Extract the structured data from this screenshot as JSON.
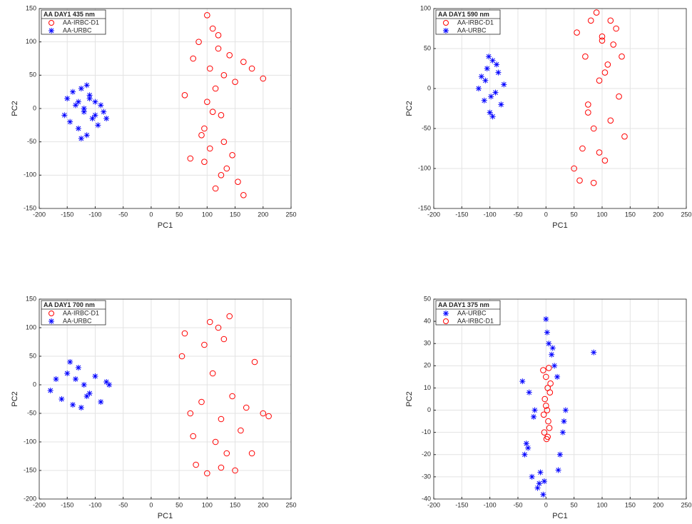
{
  "chart_data": [
    {
      "type": "scatter",
      "legend_title": "AA DAY1 435 nm",
      "xlabel": "PC1",
      "ylabel": "PC2",
      "xlim": [
        -200,
        250
      ],
      "ylim": [
        -150,
        150
      ],
      "xticks": [
        -200,
        -150,
        -100,
        -50,
        0,
        50,
        100,
        150,
        200,
        250
      ],
      "yticks": [
        -150,
        -100,
        -50,
        0,
        50,
        100,
        150
      ],
      "grid": true,
      "legend": "upper left",
      "series": [
        {
          "name": "AA-IRBC-D1",
          "color": "#ff0000",
          "marker": "o",
          "x": [
            60,
            75,
            85,
            95,
            100,
            105,
            110,
            115,
            120,
            125,
            130,
            140,
            150,
            165,
            180,
            200,
            95,
            105,
            115,
            125,
            135,
            145,
            155,
            165,
            70,
            90,
            110,
            130,
            100,
            120
          ],
          "values": [
            20,
            75,
            100,
            -30,
            140,
            60,
            120,
            30,
            90,
            -10,
            50,
            80,
            40,
            70,
            60,
            45,
            -80,
            -60,
            -120,
            -100,
            -90,
            -70,
            -110,
            -130,
            -75,
            -40,
            -5,
            -50,
            10,
            110
          ]
        },
        {
          "name": "AA-URBC",
          "color": "#0000ff",
          "marker": "*",
          "x": [
            -155,
            -150,
            -145,
            -140,
            -135,
            -130,
            -125,
            -120,
            -115,
            -110,
            -105,
            -100,
            -95,
            -90,
            -85,
            -80,
            -130,
            -120,
            -110,
            -100,
            -125,
            -115
          ],
          "values": [
            -10,
            15,
            -20,
            25,
            5,
            -30,
            30,
            0,
            -40,
            20,
            -15,
            10,
            -25,
            5,
            -5,
            -15,
            10,
            -5,
            15,
            -10,
            -45,
            35
          ]
        }
      ]
    },
    {
      "type": "scatter",
      "legend_title": "AA DAY1 590 nm",
      "xlabel": "PC1",
      "ylabel": "PC2",
      "xlim": [
        -200,
        250
      ],
      "ylim": [
        -150,
        100
      ],
      "xticks": [
        -200,
        -150,
        -100,
        -50,
        0,
        50,
        100,
        150,
        200,
        250
      ],
      "yticks": [
        -150,
        -100,
        -50,
        0,
        50,
        100
      ],
      "grid": true,
      "legend": "upper left",
      "series": [
        {
          "name": "AA-IRBC-D1",
          "color": "#ff0000",
          "marker": "o",
          "x": [
            50,
            55,
            60,
            65,
            70,
            75,
            80,
            85,
            90,
            95,
            100,
            105,
            110,
            115,
            120,
            125,
            130,
            135,
            140,
            85,
            95,
            105,
            115,
            75,
            100
          ],
          "values": [
            -100,
            70,
            -115,
            -75,
            40,
            -20,
            85,
            -50,
            95,
            10,
            60,
            -90,
            30,
            -40,
            55,
            75,
            -10,
            40,
            -60,
            -118,
            -80,
            20,
            85,
            -30,
            65
          ]
        },
        {
          "name": "AA-URBC",
          "color": "#0000ff",
          "marker": "*",
          "x": [
            -120,
            -115,
            -110,
            -105,
            -100,
            -95,
            -90,
            -85,
            -80,
            -75,
            -108,
            -98,
            -88,
            -95,
            -102
          ],
          "values": [
            0,
            15,
            -15,
            25,
            -30,
            35,
            -5,
            20,
            -20,
            5,
            10,
            -10,
            30,
            -35,
            40
          ]
        }
      ]
    },
    {
      "type": "scatter",
      "legend_title": "AA DAY1 700 nm",
      "xlabel": "PC1",
      "ylabel": "PC2",
      "xlim": [
        -200,
        250
      ],
      "ylim": [
        -200,
        150
      ],
      "xticks": [
        -200,
        -150,
        -100,
        -50,
        0,
        50,
        100,
        150,
        200,
        250
      ],
      "yticks": [
        -200,
        -150,
        -100,
        -50,
        0,
        50,
        100,
        150
      ],
      "grid": true,
      "legend": "upper left",
      "series": [
        {
          "name": "AA-IRBC-D1",
          "color": "#ff0000",
          "marker": "o",
          "x": [
            55,
            60,
            70,
            80,
            90,
            95,
            100,
            105,
            110,
            115,
            120,
            125,
            130,
            135,
            140,
            145,
            150,
            160,
            170,
            180,
            185,
            200,
            210,
            75,
            125
          ],
          "values": [
            50,
            90,
            -50,
            -140,
            -30,
            70,
            -155,
            110,
            20,
            -100,
            100,
            -60,
            80,
            -120,
            120,
            -20,
            -150,
            -80,
            -40,
            -120,
            40,
            -50,
            -55,
            -90,
            -145
          ]
        },
        {
          "name": "AA-URBC",
          "color": "#0000ff",
          "marker": "*",
          "x": [
            -180,
            -170,
            -160,
            -150,
            -140,
            -130,
            -120,
            -110,
            -100,
            -90,
            -80,
            -75,
            -145,
            -125,
            -135,
            -115
          ],
          "values": [
            -10,
            10,
            -25,
            20,
            -35,
            30,
            0,
            -15,
            15,
            -30,
            5,
            0,
            40,
            -40,
            10,
            -20
          ]
        }
      ]
    },
    {
      "type": "scatter",
      "legend_title": "AA DAY1 375 nm",
      "xlabel": "PC1",
      "ylabel": "PC2",
      "xlim": [
        -200,
        250
      ],
      "ylim": [
        -40,
        50
      ],
      "xticks": [
        -200,
        -150,
        -100,
        -50,
        0,
        50,
        100,
        150,
        200,
        250
      ],
      "yticks": [
        -40,
        -30,
        -20,
        -10,
        0,
        10,
        20,
        30,
        40,
        50
      ],
      "grid": true,
      "legend": "upper left",
      "series": [
        {
          "name": "AA-URBC",
          "color": "#0000ff",
          "marker": "*",
          "x": [
            -42,
            -38,
            -35,
            -30,
            -25,
            -20,
            -15,
            -10,
            -5,
            0,
            5,
            10,
            15,
            20,
            25,
            30,
            35,
            -32,
            -22,
            -12,
            2,
            12,
            22,
            32,
            85,
            -3
          ],
          "values": [
            13,
            -20,
            -15,
            8,
            -30,
            0,
            -35,
            -28,
            -38,
            41,
            30,
            25,
            20,
            15,
            -20,
            -10,
            0,
            -17,
            -3,
            -33,
            35,
            28,
            -27,
            -5,
            26,
            -32
          ]
        },
        {
          "name": "AA-IRBC-D1",
          "color": "#ff0000",
          "marker": "o",
          "x": [
            -5,
            -3,
            -2,
            0,
            1,
            2,
            3,
            4,
            5,
            6,
            8,
            0,
            -4,
            3,
            7
          ],
          "values": [
            18,
            -10,
            5,
            15,
            -13,
            0,
            10,
            -5,
            19,
            -8,
            12,
            2,
            -2,
            -12,
            8
          ]
        }
      ]
    }
  ]
}
